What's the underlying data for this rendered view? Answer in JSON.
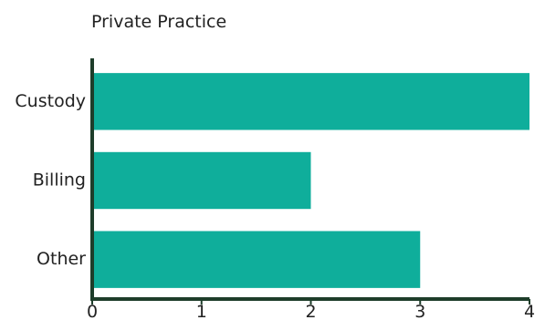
{
  "chart_data": {
    "type": "bar",
    "orientation": "horizontal",
    "title": "Private Practice",
    "xlabel": "",
    "ylabel": "",
    "categories": [
      "Custody",
      "Billing",
      "Other"
    ],
    "values": [
      4,
      2,
      3
    ],
    "xlim": [
      0,
      4
    ],
    "xticks": [
      "0",
      "1",
      "2",
      "3",
      "4"
    ],
    "grid": false,
    "colors": {
      "bar": "#0fae9b",
      "axis": "#1e3d2a"
    }
  }
}
